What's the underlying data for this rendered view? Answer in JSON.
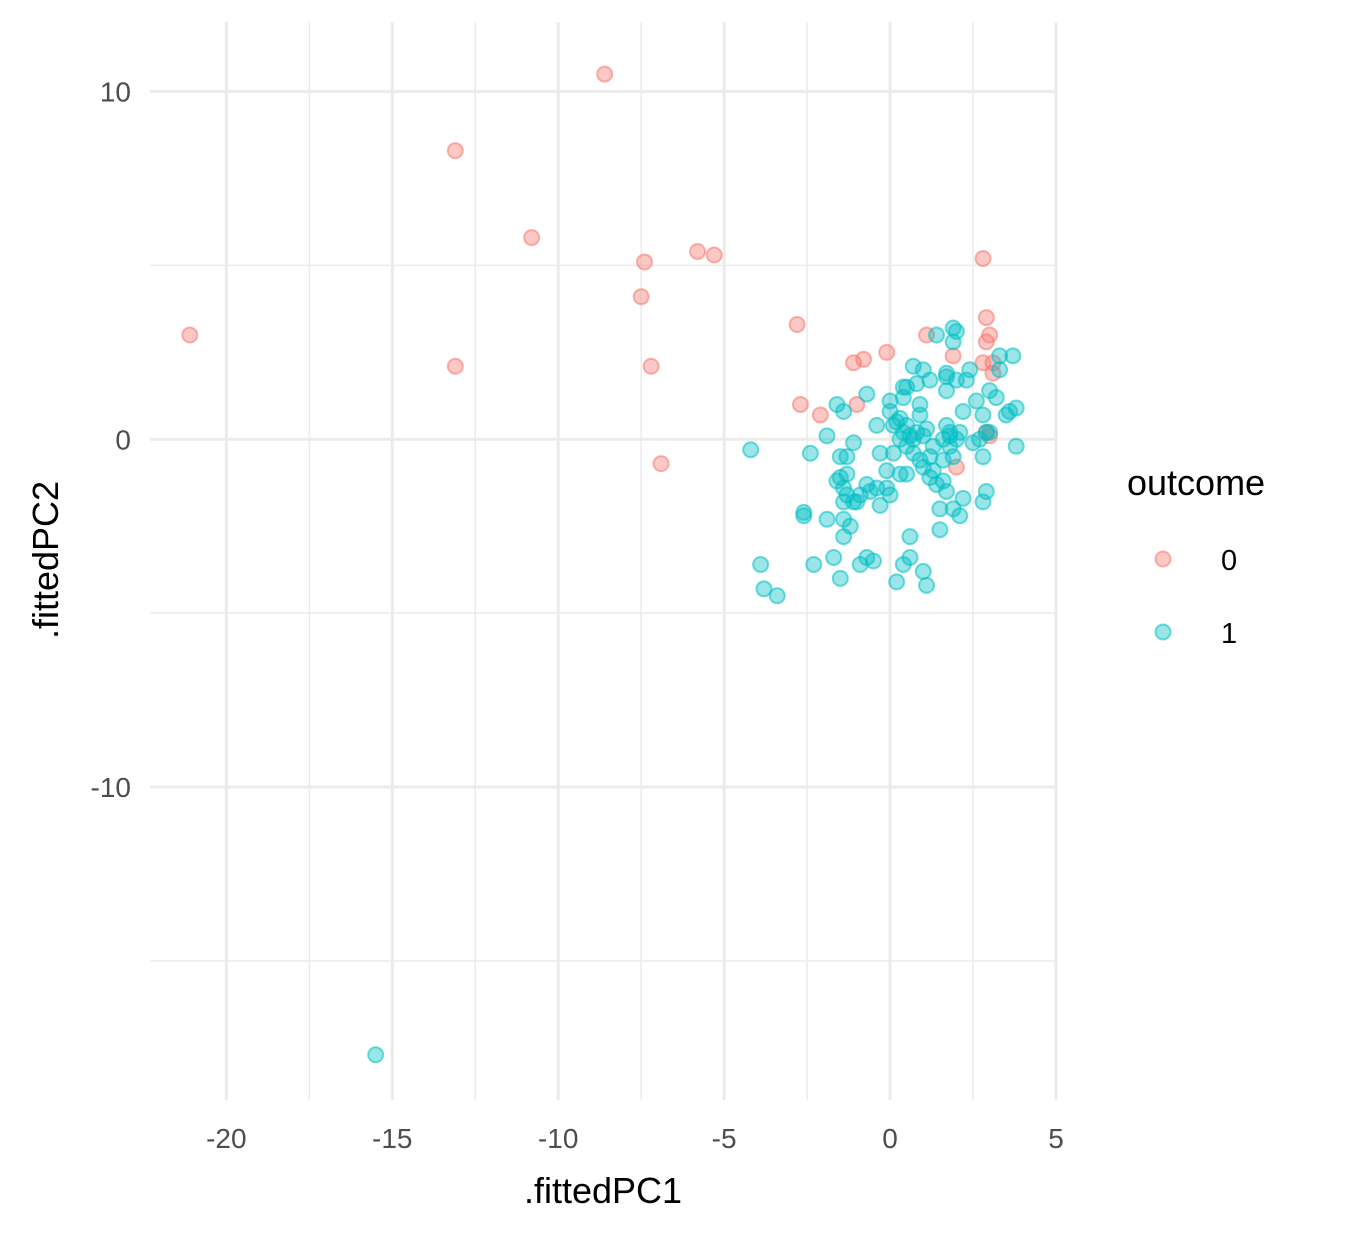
{
  "chart_data": {
    "type": "scatter",
    "title": "",
    "xlabel": ".fittedPC1",
    "ylabel": ".fittedPC2",
    "xlim": [
      -22.3,
      5.0
    ],
    "ylim": [
      -19.0,
      12.0
    ],
    "x_ticks": [
      -20,
      -15,
      -10,
      -5,
      0,
      5
    ],
    "y_ticks": [
      -10,
      0,
      10
    ],
    "grid": true,
    "legend": {
      "title": "outcome",
      "position": "right",
      "entries": [
        "0",
        "1"
      ]
    },
    "colors": {
      "0": "#F8766D",
      "1": "#00BFC4"
    },
    "series": [
      {
        "name": "0",
        "points": [
          [
            -8.6,
            10.5
          ],
          [
            -13.1,
            8.3
          ],
          [
            -10.8,
            5.8
          ],
          [
            -5.8,
            5.4
          ],
          [
            -5.3,
            5.3
          ],
          [
            -7.4,
            5.1
          ],
          [
            -7.5,
            4.1
          ],
          [
            -7.2,
            2.1
          ],
          [
            -13.1,
            2.1
          ],
          [
            -21.1,
            3.0
          ],
          [
            -6.9,
            -0.7
          ],
          [
            2.8,
            5.2
          ],
          [
            2.9,
            3.5
          ],
          [
            3.0,
            3.0
          ],
          [
            2.9,
            2.8
          ],
          [
            -2.8,
            3.3
          ],
          [
            -0.1,
            2.5
          ],
          [
            -0.8,
            2.3
          ],
          [
            -1.1,
            2.2
          ],
          [
            1.1,
            3.0
          ],
          [
            1.9,
            2.4
          ],
          [
            2.8,
            2.2
          ],
          [
            3.1,
            2.2
          ],
          [
            3.1,
            1.9
          ],
          [
            -2.7,
            1.0
          ],
          [
            -2.1,
            0.7
          ],
          [
            -1.0,
            1.0
          ],
          [
            2.0,
            -0.8
          ],
          [
            3.0,
            0.1
          ],
          [
            2.9,
            0.2
          ]
        ]
      },
      {
        "name": "1",
        "points": [
          [
            -15.5,
            -17.7
          ],
          [
            -4.2,
            -0.3
          ],
          [
            -3.9,
            -3.6
          ],
          [
            -3.8,
            -4.3
          ],
          [
            -3.4,
            -4.5
          ],
          [
            -2.6,
            -2.2
          ],
          [
            -2.6,
            -2.1
          ],
          [
            -2.4,
            -0.4
          ],
          [
            -2.3,
            -3.6
          ],
          [
            -1.9,
            -2.3
          ],
          [
            -1.9,
            0.1
          ],
          [
            -1.7,
            -3.4
          ],
          [
            -1.6,
            -1.2
          ],
          [
            -1.6,
            1.0
          ],
          [
            -1.5,
            -0.5
          ],
          [
            -1.5,
            -1.1
          ],
          [
            -1.5,
            -4.0
          ],
          [
            -1.4,
            0.8
          ],
          [
            -1.4,
            -1.4
          ],
          [
            -1.4,
            -1.8
          ],
          [
            -1.4,
            -2.3
          ],
          [
            -1.4,
            -2.8
          ],
          [
            -1.3,
            -0.5
          ],
          [
            -1.3,
            -1.0
          ],
          [
            -1.3,
            -1.6
          ],
          [
            -1.2,
            -2.5
          ],
          [
            -1.1,
            -0.1
          ],
          [
            -1.1,
            -1.8
          ],
          [
            -1.0,
            -1.8
          ],
          [
            -0.9,
            -1.6
          ],
          [
            -0.9,
            -3.6
          ],
          [
            -0.7,
            -3.4
          ],
          [
            -0.7,
            -1.3
          ],
          [
            -0.7,
            1.3
          ],
          [
            -0.6,
            -1.5
          ],
          [
            -0.5,
            -3.5
          ],
          [
            -0.4,
            -1.4
          ],
          [
            -0.4,
            0.4
          ],
          [
            -0.3,
            -1.9
          ],
          [
            -0.3,
            -0.4
          ],
          [
            -0.1,
            -0.9
          ],
          [
            -0.1,
            -1.4
          ],
          [
            0.0,
            0.8
          ],
          [
            0.0,
            1.1
          ],
          [
            0.0,
            -1.6
          ],
          [
            0.1,
            0.4
          ],
          [
            0.1,
            -0.4
          ],
          [
            0.2,
            0.5
          ],
          [
            0.2,
            -4.1
          ],
          [
            0.3,
            -1.0
          ],
          [
            0.3,
            0.0
          ],
          [
            0.3,
            0.6
          ],
          [
            0.4,
            1.5
          ],
          [
            0.4,
            -3.6
          ],
          [
            0.4,
            1.2
          ],
          [
            0.4,
            0.2
          ],
          [
            0.5,
            1.5
          ],
          [
            0.5,
            -0.2
          ],
          [
            0.5,
            -1.0
          ],
          [
            0.5,
            0.4
          ],
          [
            0.6,
            -3.4
          ],
          [
            0.6,
            -2.8
          ],
          [
            0.6,
            0.1
          ],
          [
            0.7,
            2.1
          ],
          [
            0.7,
            0.0
          ],
          [
            0.7,
            -0.4
          ],
          [
            0.8,
            1.6
          ],
          [
            0.8,
            0.2
          ],
          [
            0.9,
            1.0
          ],
          [
            0.9,
            0.7
          ],
          [
            0.9,
            -0.6
          ],
          [
            1.0,
            -3.8
          ],
          [
            1.0,
            2.0
          ],
          [
            1.0,
            0.1
          ],
          [
            1.0,
            -0.8
          ],
          [
            1.1,
            -4.2
          ],
          [
            1.1,
            0.3
          ],
          [
            1.2,
            1.7
          ],
          [
            1.2,
            -0.5
          ],
          [
            1.2,
            -1.1
          ],
          [
            1.3,
            -0.9
          ],
          [
            1.3,
            -0.2
          ],
          [
            1.4,
            3.0
          ],
          [
            1.4,
            -1.3
          ],
          [
            1.5,
            -2.0
          ],
          [
            1.5,
            -2.6
          ],
          [
            1.6,
            -0.6
          ],
          [
            1.6,
            -1.2
          ],
          [
            1.6,
            0.0
          ],
          [
            1.7,
            1.9
          ],
          [
            1.7,
            1.8
          ],
          [
            1.7,
            1.4
          ],
          [
            1.7,
            0.4
          ],
          [
            1.7,
            -1.5
          ],
          [
            1.8,
            0.1
          ],
          [
            1.8,
            0.2
          ],
          [
            1.8,
            -0.2
          ],
          [
            1.9,
            2.8
          ],
          [
            1.9,
            3.2
          ],
          [
            1.9,
            -2.0
          ],
          [
            1.9,
            -0.5
          ],
          [
            2.0,
            3.1
          ],
          [
            2.0,
            0.0
          ],
          [
            2.0,
            1.7
          ],
          [
            2.1,
            0.2
          ],
          [
            2.1,
            -2.2
          ],
          [
            2.2,
            -1.7
          ],
          [
            2.2,
            0.8
          ],
          [
            2.3,
            1.7
          ],
          [
            2.4,
            2.0
          ],
          [
            2.5,
            -0.1
          ],
          [
            2.6,
            1.1
          ],
          [
            2.7,
            0.0
          ],
          [
            2.8,
            0.7
          ],
          [
            2.8,
            -0.5
          ],
          [
            2.9,
            -1.5
          ],
          [
            2.8,
            -1.8
          ],
          [
            2.9,
            0.2
          ],
          [
            3.0,
            1.4
          ],
          [
            3.0,
            0.2
          ],
          [
            3.2,
            1.2
          ],
          [
            3.3,
            2.4
          ],
          [
            3.3,
            2.0
          ],
          [
            3.5,
            0.7
          ],
          [
            3.6,
            0.8
          ],
          [
            3.7,
            2.4
          ],
          [
            3.8,
            0.9
          ],
          [
            3.8,
            -0.2
          ]
        ]
      }
    ]
  }
}
